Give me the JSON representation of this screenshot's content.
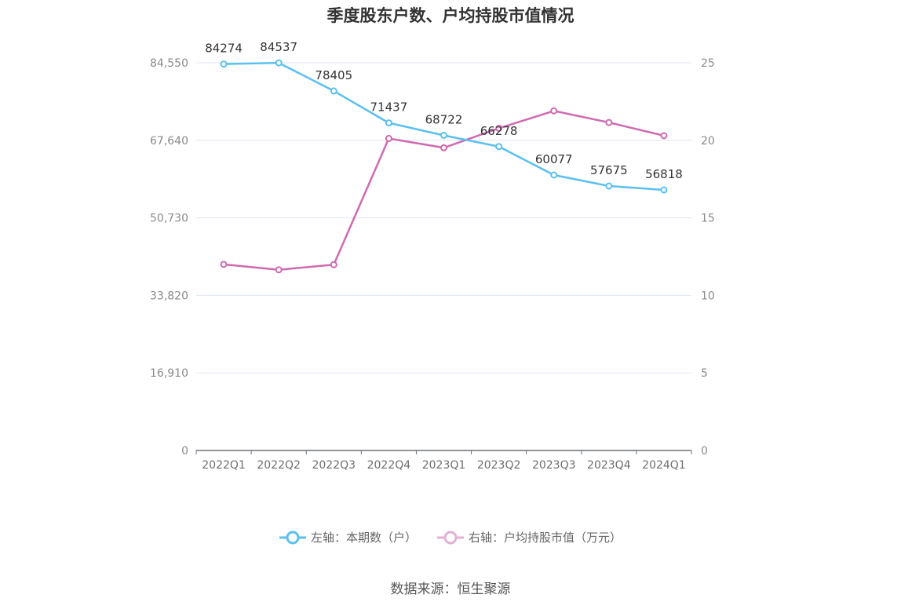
{
  "title": "季度股东户数、户均持股市值情况",
  "source": "数据来源：恒生聚源",
  "chart_data": {
    "type": "line",
    "categories": [
      "2022Q1",
      "2022Q2",
      "2022Q3",
      "2022Q4",
      "2023Q1",
      "2023Q2",
      "2023Q3",
      "2023Q4",
      "2024Q1"
    ],
    "series": [
      {
        "name": "左轴：本期数（户）",
        "axis": "left",
        "color": "#5bc0f0",
        "values": [
          84274,
          84537,
          78405,
          71437,
          68722,
          66278,
          60077,
          57675,
          56818
        ],
        "labels": [
          "84274",
          "84537",
          "78405",
          "71437",
          "68722",
          "66278",
          "60077",
          "57675",
          "56818"
        ]
      },
      {
        "name": "右轴：户均持股市值（万元）",
        "axis": "right",
        "color": "#d06ab0",
        "values": [
          12.0,
          11.65,
          11.98,
          20.12,
          19.52,
          20.78,
          21.9,
          21.15,
          20.3
        ]
      }
    ],
    "left_axis": {
      "ylim": [
        0,
        84550
      ],
      "ticks": [
        0,
        16910,
        33820,
        50730,
        67640,
        84550
      ],
      "tick_labels": [
        "0",
        "16,910",
        "33,820",
        "50,730",
        "67,640",
        "84,550"
      ]
    },
    "right_axis": {
      "ylim": [
        0,
        25
      ],
      "ticks": [
        0,
        5,
        10,
        15,
        20,
        25
      ],
      "tick_labels": [
        "0",
        "5",
        "10",
        "15",
        "20",
        "25"
      ]
    },
    "grid": true,
    "legend_position": "bottom"
  }
}
